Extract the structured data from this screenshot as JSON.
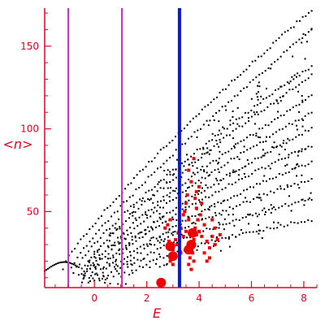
{
  "chart_data": {
    "type": "scatter",
    "title": "",
    "xlabel": "E",
    "ylabel": "<n>",
    "xlim": [
      -1.9,
      8.5
    ],
    "ylim": [
      4,
      173
    ],
    "x_ticks": [
      0,
      2,
      4,
      6,
      8
    ],
    "y_ticks": [
      50,
      100,
      150
    ],
    "y_tick_labels": [
      "50",
      "100",
      "150"
    ],
    "grid": false,
    "legend": "none",
    "colors": {
      "axes": "#e8001c",
      "points": "#000000",
      "highlight": "#f00000",
      "vertical_lines": "#cc33cc",
      "marker_line": "#0a14e6"
    },
    "vertical_lines": [
      {
        "x": -1.0,
        "color": "#cc33cc"
      },
      {
        "x": 1.05,
        "color": "#cc33cc"
      },
      {
        "x": 3.25,
        "color": "#0a14e6"
      }
    ],
    "series": [
      {
        "style": "dots",
        "bands": [
          {
            "x0": -1.2,
            "y0": 16,
            "x1": 8.3,
            "y1": 172,
            "curve": 0.85,
            "n": 85
          },
          {
            "x0": -1.0,
            "y0": 13,
            "x1": 8.3,
            "y1": 160,
            "curve": 0.85,
            "n": 80
          },
          {
            "x0": -0.8,
            "y0": 12,
            "x1": 8.3,
            "y1": 138,
            "curve": 0.8,
            "n": 80
          },
          {
            "x0": -0.6,
            "y0": 11,
            "x1": 8.3,
            "y1": 132,
            "curve": 0.8,
            "n": 75
          },
          {
            "x0": -0.4,
            "y0": 10,
            "x1": 8.3,
            "y1": 120,
            "curve": 0.8,
            "n": 75
          },
          {
            "x0": -0.2,
            "y0": 9,
            "x1": 8.3,
            "y1": 110,
            "curve": 0.75,
            "n": 70
          },
          {
            "x0": 0.0,
            "y0": 8,
            "x1": 8.3,
            "y1": 100,
            "curve": 0.75,
            "n": 70
          },
          {
            "x0": 0.2,
            "y0": 8,
            "x1": 8.3,
            "y1": 90,
            "curve": 0.7,
            "n": 65
          },
          {
            "x0": 0.4,
            "y0": 7,
            "x1": 8.3,
            "y1": 80,
            "curve": 0.7,
            "n": 65
          },
          {
            "x0": 0.6,
            "y0": 7,
            "x1": 8.3,
            "y1": 70,
            "curve": 0.65,
            "n": 60
          },
          {
            "x0": 0.9,
            "y0": 7,
            "x1": 8.3,
            "y1": 58,
            "curve": 0.6,
            "n": 60
          },
          {
            "x0": 1.2,
            "y0": 7,
            "x1": 8.3,
            "y1": 45,
            "curve": 0.55,
            "n": 55
          }
        ],
        "ground_arc": {
          "x_start": -1.9,
          "x_end": -0.6,
          "y_start": 14,
          "y_peak": 19,
          "y_end": 16,
          "n": 22
        },
        "scatter_fill": {
          "x_range": [
            -0.5,
            8.3
          ],
          "n": 320
        }
      },
      {
        "style": "highlight",
        "points": [
          [
            2.5,
            6
          ],
          [
            2.55,
            7
          ],
          [
            2.6,
            6.5
          ],
          [
            2.5,
            8
          ],
          [
            2.8,
            28
          ],
          [
            2.9,
            30
          ],
          [
            3.0,
            27
          ],
          [
            2.85,
            32
          ],
          [
            2.95,
            24
          ],
          [
            3.05,
            22
          ],
          [
            2.9,
            20
          ],
          [
            3.0,
            18
          ],
          [
            3.6,
            30
          ],
          [
            3.7,
            28
          ],
          [
            3.8,
            33
          ],
          [
            3.9,
            36
          ],
          [
            3.75,
            25
          ],
          [
            3.65,
            22
          ],
          [
            3.85,
            40
          ],
          [
            4.0,
            38
          ],
          [
            4.1,
            35
          ],
          [
            4.2,
            42
          ],
          [
            3.95,
            45
          ],
          [
            4.05,
            48
          ],
          [
            3.9,
            52
          ],
          [
            4.1,
            55
          ],
          [
            3.85,
            58
          ],
          [
            3.6,
            45
          ],
          [
            3.5,
            38
          ],
          [
            3.4,
            35
          ],
          [
            3.45,
            50
          ],
          [
            3.55,
            60
          ],
          [
            3.6,
            75
          ],
          [
            3.8,
            82
          ],
          [
            3.7,
            68
          ],
          [
            3.4,
            48
          ],
          [
            3.3,
            40
          ],
          [
            4.3,
            32
          ],
          [
            4.4,
            28
          ],
          [
            4.5,
            35
          ],
          [
            4.6,
            30
          ],
          [
            4.7,
            33
          ],
          [
            4.8,
            36
          ],
          [
            4.2,
            25
          ],
          [
            4.3,
            20
          ],
          [
            4.4,
            22
          ],
          [
            3.1,
            33
          ],
          [
            3.2,
            37
          ],
          [
            3.15,
            30
          ],
          [
            3.9,
            62
          ],
          [
            4.0,
            65
          ],
          [
            3.5,
            55
          ],
          [
            2.8,
            42
          ],
          [
            2.7,
            40
          ],
          [
            3.3,
            25
          ],
          [
            3.6,
            18
          ],
          [
            3.7,
            15
          ],
          [
            3.8,
            20
          ],
          [
            2.9,
            45
          ],
          [
            4.6,
            40
          ],
          [
            4.5,
            45
          ]
        ],
        "big_points": [
          [
            2.9,
            29
          ],
          [
            3.0,
            23
          ],
          [
            3.7,
            30
          ],
          [
            3.75,
            37
          ],
          [
            3.6,
            27
          ],
          [
            2.55,
            7
          ]
        ]
      }
    ]
  }
}
